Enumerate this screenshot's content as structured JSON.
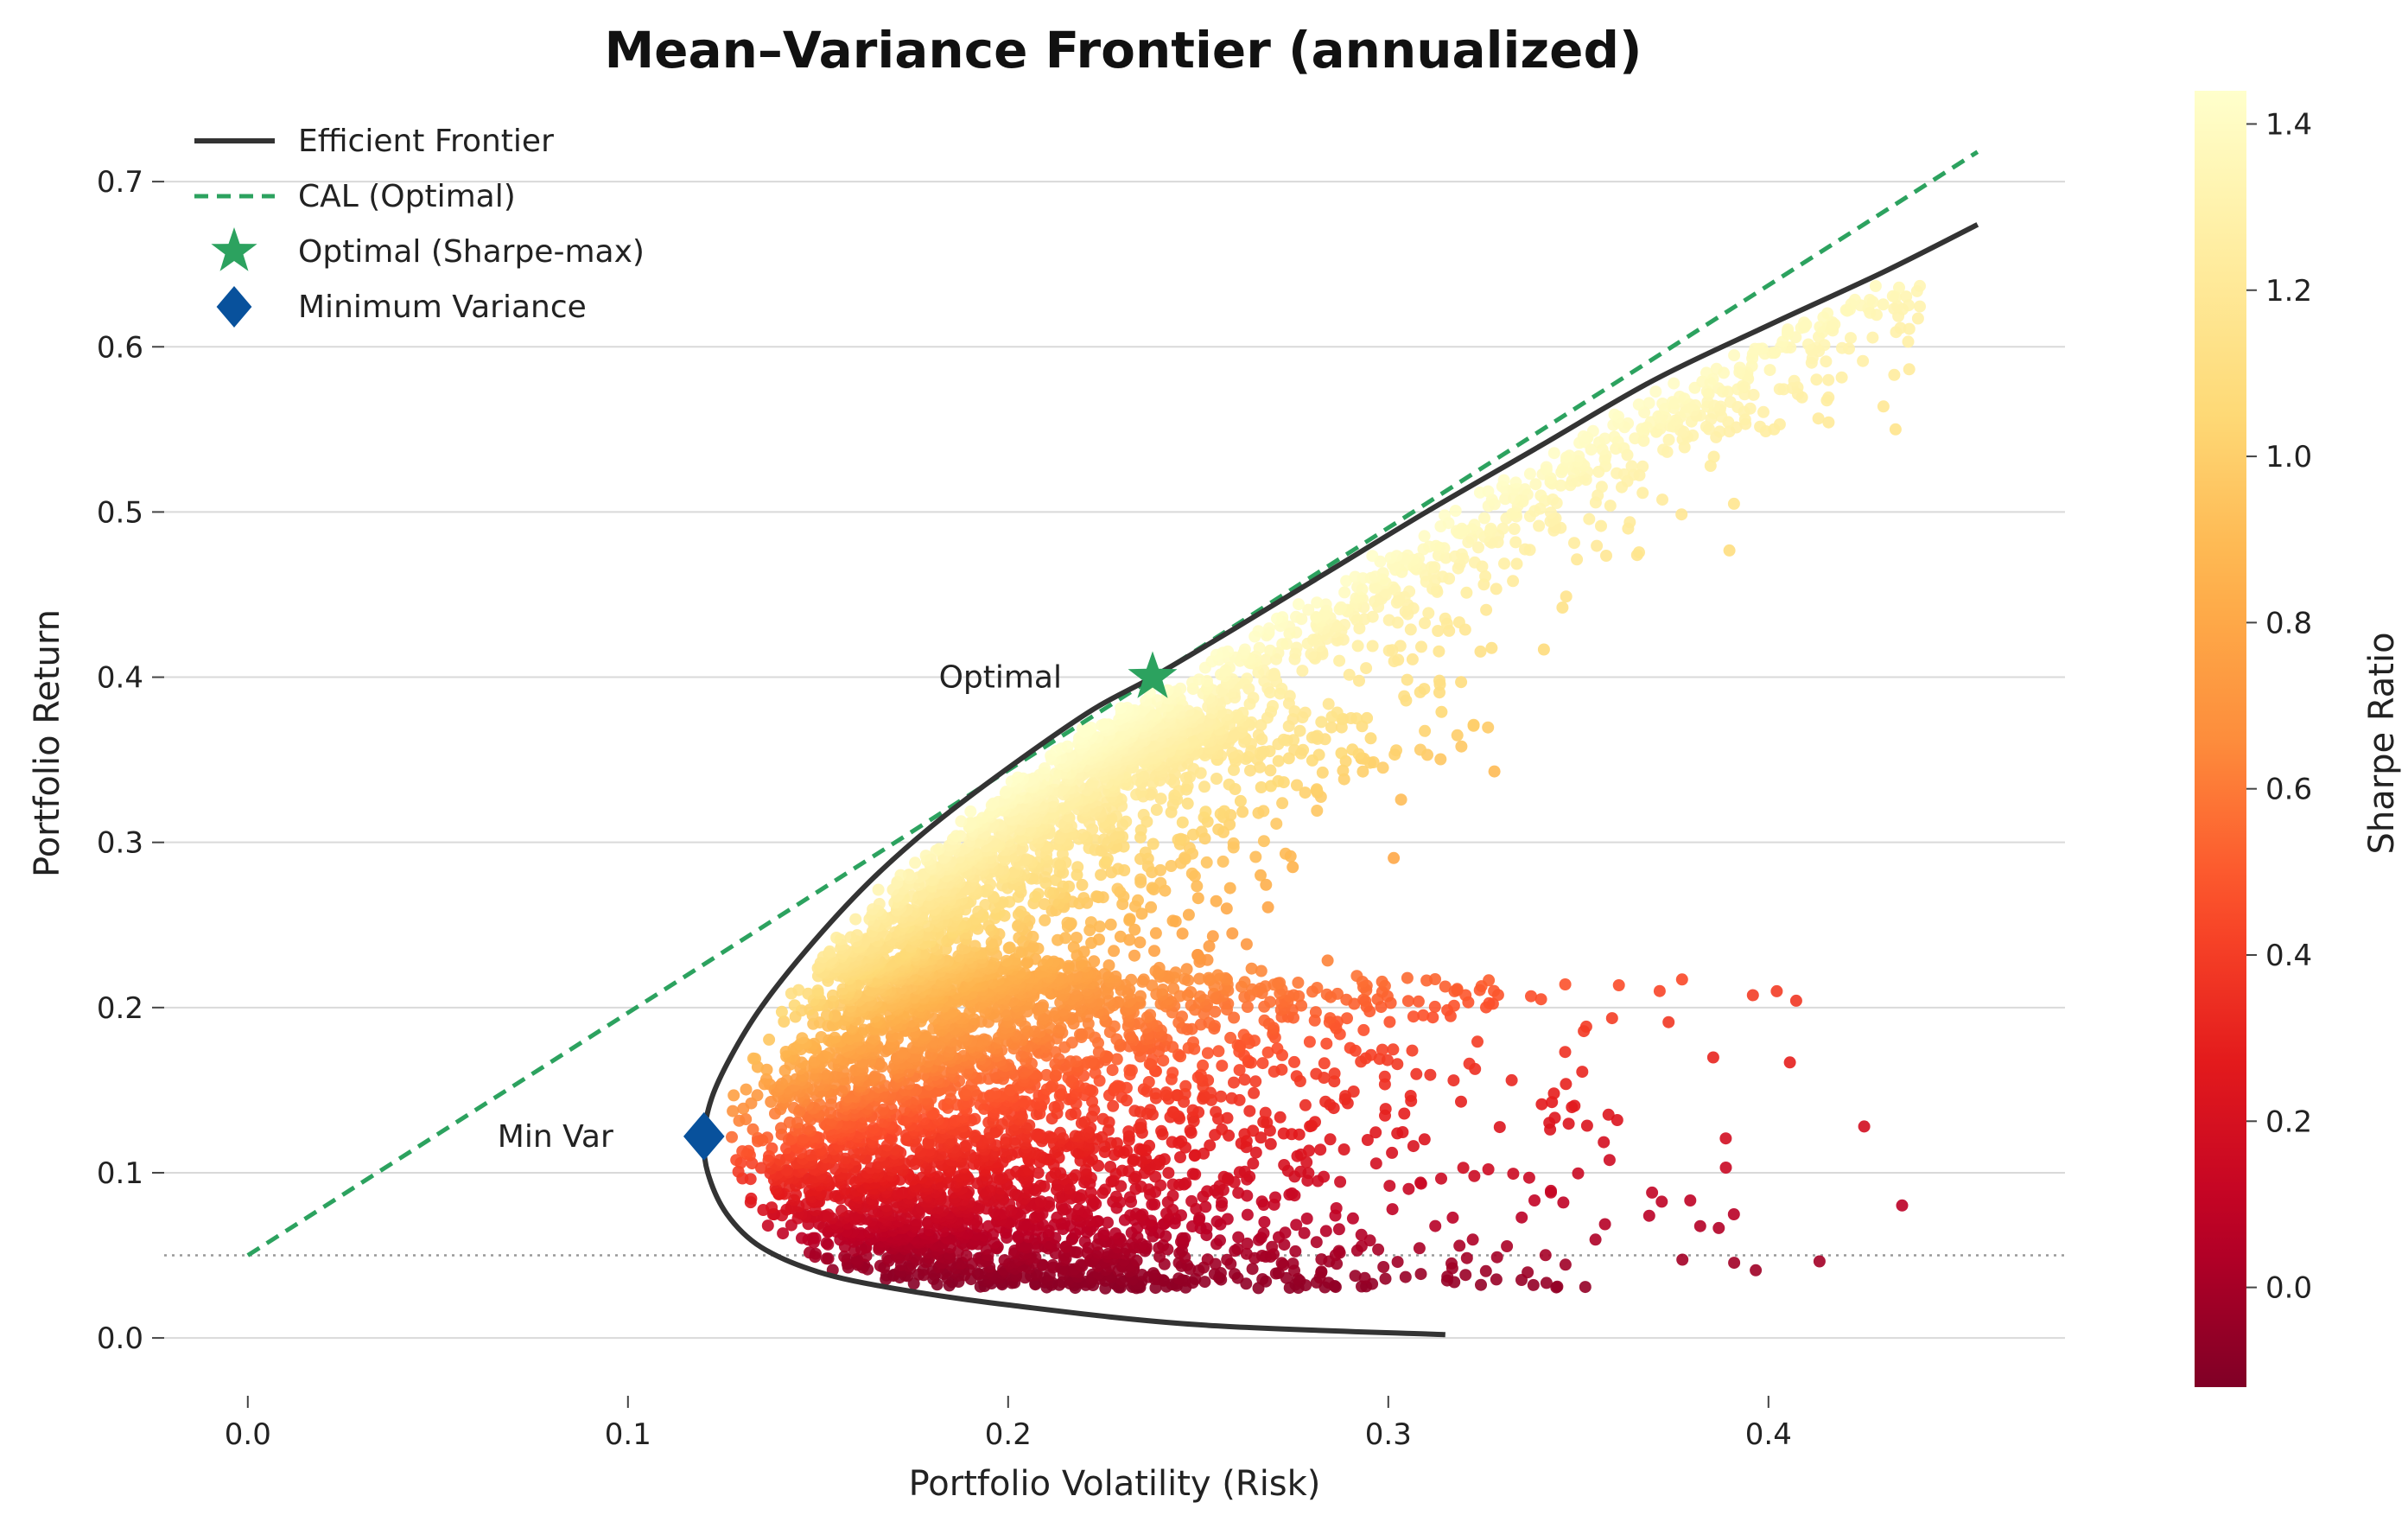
{
  "chart_data": {
    "type": "scatter",
    "title": "Mean–Variance Frontier (annualized)",
    "xlabel": "Portfolio Volatility (Risk)",
    "ylabel": "Portfolio Return",
    "xlim": [
      -0.022,
      0.478
    ],
    "ylim": [
      -0.035,
      0.755
    ],
    "x_ticks": [
      {
        "value": 0.0,
        "label": "0.0"
      },
      {
        "value": 0.1,
        "label": "0.1"
      },
      {
        "value": 0.2,
        "label": "0.2"
      },
      {
        "value": 0.3,
        "label": "0.3"
      },
      {
        "value": 0.4,
        "label": "0.4"
      }
    ],
    "y_ticks": [
      {
        "value": 0.0,
        "label": "0.0"
      },
      {
        "value": 0.1,
        "label": "0.1"
      },
      {
        "value": 0.2,
        "label": "0.2"
      },
      {
        "value": 0.3,
        "label": "0.3"
      },
      {
        "value": 0.4,
        "label": "0.4"
      },
      {
        "value": 0.5,
        "label": "0.5"
      },
      {
        "value": 0.6,
        "label": "0.6"
      },
      {
        "value": 0.7,
        "label": "0.7"
      }
    ],
    "grid": "horizontal",
    "legend_position": "top-left",
    "legend": [
      {
        "label": "Efficient Frontier",
        "marker": "line",
        "color": "#333333"
      },
      {
        "label": "CAL (Optimal)",
        "marker": "dashed-line",
        "color": "#2ca25f"
      },
      {
        "label": "Optimal (Sharpe-max)",
        "marker": "star",
        "color": "#2ca25f"
      },
      {
        "label": "Minimum Variance",
        "marker": "diamond",
        "color": "#08519c"
      }
    ],
    "risk_free_rate": 0.05,
    "efficient_frontier": {
      "color": "#333333",
      "points": [
        [
          0.315,
          0.002
        ],
        [
          0.25,
          0.008
        ],
        [
          0.2,
          0.02
        ],
        [
          0.17,
          0.03
        ],
        [
          0.15,
          0.04
        ],
        [
          0.135,
          0.055
        ],
        [
          0.126,
          0.075
        ],
        [
          0.121,
          0.1
        ],
        [
          0.12,
          0.122
        ],
        [
          0.122,
          0.145
        ],
        [
          0.127,
          0.17
        ],
        [
          0.135,
          0.2
        ],
        [
          0.147,
          0.235
        ],
        [
          0.163,
          0.275
        ],
        [
          0.18,
          0.31
        ],
        [
          0.2,
          0.345
        ],
        [
          0.222,
          0.38
        ],
        [
          0.238,
          0.4
        ],
        [
          0.26,
          0.43
        ],
        [
          0.285,
          0.465
        ],
        [
          0.31,
          0.5
        ],
        [
          0.34,
          0.54
        ],
        [
          0.37,
          0.58
        ],
        [
          0.4,
          0.613
        ],
        [
          0.43,
          0.645
        ],
        [
          0.455,
          0.674
        ]
      ]
    },
    "cal": {
      "color": "#2ca25f",
      "start": [
        0.0,
        0.05
      ],
      "end": [
        0.455,
        0.718
      ]
    },
    "optimal_point": {
      "x": 0.238,
      "y": 0.4,
      "label": "Optimal",
      "color": "#2ca25f"
    },
    "min_variance_point": {
      "x": 0.12,
      "y": 0.122,
      "label": "Min Var",
      "color": "#08519c"
    },
    "colorbar": {
      "label": "Sharpe Ratio",
      "colormap": "YlOrRd_r",
      "range": [
        -0.12,
        1.44
      ],
      "ticks": [
        {
          "value": 0.0,
          "label": "0.0"
        },
        {
          "value": 0.2,
          "label": "0.2"
        },
        {
          "value": 0.4,
          "label": "0.4"
        },
        {
          "value": 0.6,
          "label": "0.6"
        },
        {
          "value": 0.8,
          "label": "0.8"
        },
        {
          "value": 1.0,
          "label": "1.0"
        },
        {
          "value": 1.2,
          "label": "1.2"
        },
        {
          "value": 1.4,
          "label": "1.4"
        }
      ],
      "stops": [
        "#800026",
        "#bd0026",
        "#e31a1c",
        "#fc4e2a",
        "#fd8d3c",
        "#feb24c",
        "#fed976",
        "#ffeda0",
        "#ffffcc"
      ]
    },
    "simulated_portfolios": {
      "description_count": 6000,
      "return_range": [
        0.02,
        0.64
      ],
      "volatility_range": [
        0.12,
        0.43
      ]
    }
  }
}
